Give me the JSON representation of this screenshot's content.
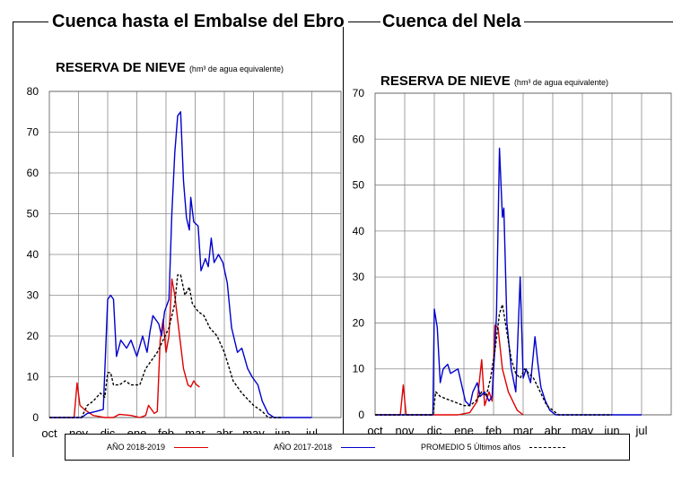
{
  "headers": {
    "left": "Cuenca hasta el Embalse del Ebro",
    "right": "Cuenca del Nela"
  },
  "subtitle": {
    "main": "RESERVA DE NIEVE",
    "unit": "(hm³ de agua equivalente)"
  },
  "legend": {
    "items": [
      {
        "label": "AÑO 2018-2019",
        "color": "#e00000",
        "style": "solid"
      },
      {
        "label": "AÑO 2017-2018",
        "color": "#0000cc",
        "style": "solid"
      },
      {
        "label": "PROMEDIO 5 Últimos años",
        "color": "#000000",
        "style": "dashed"
      }
    ]
  },
  "chart_data": [
    {
      "type": "line",
      "title": "RESERVA DE NIEVE (hm³ de agua equivalente)",
      "xlabel": "",
      "ylabel": "",
      "categories": [
        "oct",
        "nov",
        "dic",
        "ene",
        "feb",
        "mar",
        "abr",
        "may",
        "jun",
        "jul"
      ],
      "ylim": [
        0,
        80
      ],
      "yticks": [
        0,
        10,
        20,
        30,
        40,
        50,
        60,
        70,
        80
      ],
      "grid": true,
      "series": [
        {
          "name": "AÑO 2018-2019",
          "color": "#e00000",
          "dash": false,
          "points": [
            [
              0,
              0
            ],
            [
              0.85,
              0
            ],
            [
              0.95,
              8.5
            ],
            [
              1.05,
              3
            ],
            [
              1.2,
              2
            ],
            [
              1.5,
              0.5
            ],
            [
              1.9,
              0
            ],
            [
              2.2,
              0
            ],
            [
              2.4,
              0.8
            ],
            [
              2.8,
              0.5
            ],
            [
              3.1,
              0
            ],
            [
              3.3,
              0.5
            ],
            [
              3.4,
              3
            ],
            [
              3.6,
              1
            ],
            [
              3.7,
              1.5
            ],
            [
              3.8,
              19
            ],
            [
              3.9,
              24
            ],
            [
              4.0,
              16
            ],
            [
              4.1,
              20
            ],
            [
              4.2,
              34
            ],
            [
              4.3,
              30
            ],
            [
              4.45,
              21
            ],
            [
              4.6,
              12
            ],
            [
              4.75,
              8
            ],
            [
              4.85,
              7.5
            ],
            [
              4.95,
              9
            ],
            [
              5.05,
              8
            ],
            [
              5.15,
              7.5
            ]
          ]
        },
        {
          "name": "AÑO 2017-2018",
          "color": "#0000cc",
          "dash": false,
          "points": [
            [
              0,
              0
            ],
            [
              1.1,
              0
            ],
            [
              1.3,
              1
            ],
            [
              1.6,
              1.5
            ],
            [
              1.85,
              2
            ],
            [
              2.0,
              29
            ],
            [
              2.1,
              30
            ],
            [
              2.2,
              29
            ],
            [
              2.3,
              15
            ],
            [
              2.45,
              19
            ],
            [
              2.65,
              17
            ],
            [
              2.8,
              19
            ],
            [
              3.0,
              15
            ],
            [
              3.2,
              20
            ],
            [
              3.35,
              16
            ],
            [
              3.45,
              21
            ],
            [
              3.55,
              25
            ],
            [
              3.75,
              23
            ],
            [
              3.85,
              20
            ],
            [
              3.95,
              26
            ],
            [
              4.1,
              29
            ],
            [
              4.2,
              50
            ],
            [
              4.3,
              65
            ],
            [
              4.4,
              74
            ],
            [
              4.5,
              75
            ],
            [
              4.6,
              58
            ],
            [
              4.7,
              49
            ],
            [
              4.8,
              46
            ],
            [
              4.85,
              54
            ],
            [
              4.95,
              48
            ],
            [
              5.1,
              47
            ],
            [
              5.2,
              36
            ],
            [
              5.35,
              39
            ],
            [
              5.45,
              37
            ],
            [
              5.55,
              44
            ],
            [
              5.65,
              38
            ],
            [
              5.8,
              40
            ],
            [
              5.95,
              38
            ],
            [
              6.1,
              33
            ],
            [
              6.25,
              22
            ],
            [
              6.45,
              16
            ],
            [
              6.6,
              17
            ],
            [
              6.8,
              12
            ],
            [
              6.95,
              10
            ],
            [
              7.15,
              8
            ],
            [
              7.3,
              4
            ],
            [
              7.5,
              1
            ],
            [
              7.7,
              0
            ],
            [
              8.0,
              0
            ],
            [
              9.0,
              0
            ]
          ]
        },
        {
          "name": "PROMEDIO 5 Últimos años",
          "color": "#000000",
          "dash": true,
          "points": [
            [
              0,
              0
            ],
            [
              1.1,
              0
            ],
            [
              1.3,
              3
            ],
            [
              1.5,
              4
            ],
            [
              1.75,
              6
            ],
            [
              1.9,
              5
            ],
            [
              2.0,
              11
            ],
            [
              2.1,
              11
            ],
            [
              2.2,
              8
            ],
            [
              2.4,
              8
            ],
            [
              2.6,
              9
            ],
            [
              2.8,
              8
            ],
            [
              3.1,
              8
            ],
            [
              3.3,
              12
            ],
            [
              3.5,
              14
            ],
            [
              3.7,
              16
            ],
            [
              3.9,
              19
            ],
            [
              4.1,
              22
            ],
            [
              4.3,
              28
            ],
            [
              4.4,
              35
            ],
            [
              4.5,
              35
            ],
            [
              4.65,
              30
            ],
            [
              4.8,
              32
            ],
            [
              4.9,
              28
            ],
            [
              5.1,
              26
            ],
            [
              5.3,
              25
            ],
            [
              5.5,
              22
            ],
            [
              5.75,
              20
            ],
            [
              6.0,
              16
            ],
            [
              6.3,
              9
            ],
            [
              6.6,
              6
            ],
            [
              7.0,
              3
            ],
            [
              7.3,
              1.5
            ],
            [
              7.5,
              0
            ],
            [
              8.0,
              0
            ]
          ]
        }
      ]
    },
    {
      "type": "line",
      "title": "RESERVA DE NIEVE (hm³ de agua equivalente)",
      "xlabel": "",
      "ylabel": "",
      "categories": [
        "oct",
        "nov",
        "dic",
        "ene",
        "feb",
        "mar",
        "abr",
        "may",
        "jun",
        "jul"
      ],
      "ylim": [
        0,
        70
      ],
      "yticks": [
        0,
        10,
        20,
        30,
        40,
        50,
        60,
        70
      ],
      "grid": true,
      "series": [
        {
          "name": "AÑO 2018-2019",
          "color": "#e00000",
          "dash": false,
          "points": [
            [
              0,
              0
            ],
            [
              0.85,
              0
            ],
            [
              0.95,
              6.5
            ],
            [
              1.05,
              0
            ],
            [
              2.8,
              0
            ],
            [
              3.2,
              0.5
            ],
            [
              3.45,
              3
            ],
            [
              3.6,
              12
            ],
            [
              3.7,
              2
            ],
            [
              3.85,
              5
            ],
            [
              3.95,
              3
            ],
            [
              4.05,
              19.5
            ],
            [
              4.15,
              19
            ],
            [
              4.3,
              10
            ],
            [
              4.5,
              5
            ],
            [
              4.8,
              1
            ],
            [
              5.0,
              0
            ]
          ]
        },
        {
          "name": "AÑO 2017-2018",
          "color": "#0000cc",
          "dash": false,
          "points": [
            [
              0,
              0
            ],
            [
              1.95,
              0
            ],
            [
              2.0,
              23
            ],
            [
              2.1,
              19
            ],
            [
              2.2,
              7
            ],
            [
              2.3,
              10
            ],
            [
              2.45,
              11
            ],
            [
              2.55,
              9
            ],
            [
              2.8,
              10
            ],
            [
              3.05,
              3
            ],
            [
              3.2,
              2
            ],
            [
              3.3,
              5
            ],
            [
              3.45,
              7
            ],
            [
              3.55,
              4
            ],
            [
              3.7,
              5
            ],
            [
              3.85,
              3
            ],
            [
              3.95,
              4
            ],
            [
              4.05,
              15
            ],
            [
              4.1,
              22
            ],
            [
              4.2,
              58
            ],
            [
              4.3,
              43
            ],
            [
              4.35,
              45
            ],
            [
              4.45,
              20
            ],
            [
              4.6,
              10
            ],
            [
              4.75,
              5
            ],
            [
              4.9,
              30
            ],
            [
              5.0,
              8
            ],
            [
              5.1,
              10
            ],
            [
              5.25,
              7
            ],
            [
              5.4,
              17
            ],
            [
              5.5,
              11
            ],
            [
              5.6,
              6
            ],
            [
              5.75,
              3
            ],
            [
              5.9,
              1
            ],
            [
              6.1,
              0
            ],
            [
              9.0,
              0
            ]
          ]
        },
        {
          "name": "PROMEDIO 5 Últimos años",
          "color": "#000000",
          "dash": true,
          "points": [
            [
              0,
              0
            ],
            [
              1.95,
              0
            ],
            [
              2.05,
              5
            ],
            [
              2.2,
              4
            ],
            [
              2.4,
              3.5
            ],
            [
              2.6,
              3
            ],
            [
              2.8,
              2.5
            ],
            [
              3.0,
              2
            ],
            [
              3.2,
              2
            ],
            [
              3.4,
              3
            ],
            [
              3.6,
              5
            ],
            [
              3.75,
              4
            ],
            [
              3.9,
              8
            ],
            [
              4.05,
              14
            ],
            [
              4.2,
              22
            ],
            [
              4.3,
              24
            ],
            [
              4.45,
              18
            ],
            [
              4.6,
              12
            ],
            [
              4.75,
              9
            ],
            [
              4.9,
              8
            ],
            [
              5.05,
              10
            ],
            [
              5.2,
              9
            ],
            [
              5.35,
              8
            ],
            [
              5.5,
              6
            ],
            [
              5.65,
              4
            ],
            [
              5.8,
              2
            ],
            [
              6.0,
              1
            ],
            [
              6.2,
              0
            ],
            [
              8.0,
              0
            ]
          ]
        }
      ]
    }
  ]
}
